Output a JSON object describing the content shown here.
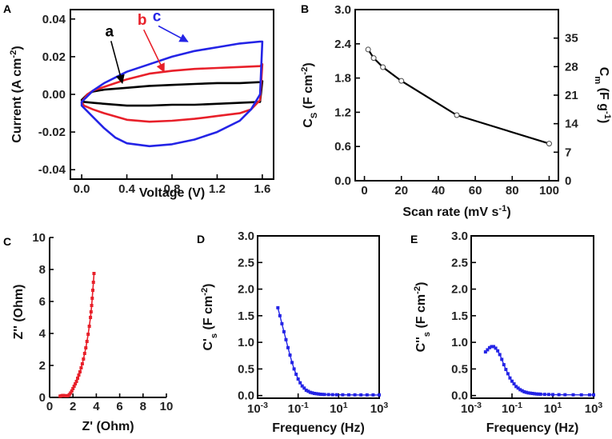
{
  "figure": {
    "panel_labels": [
      "A",
      "B",
      "C",
      "D",
      "E"
    ]
  },
  "colors": {
    "black": "#000000",
    "red": "#e8202a",
    "blue": "#2424e6"
  },
  "chart_data": [
    {
      "panel": "A",
      "type": "line",
      "subtype": "cyclic voltammetry",
      "xlabel": "Voltage (V)",
      "ylabel": "Current (A cm-2)",
      "ylabel_parts": [
        "Current (A cm",
        "-2",
        ")"
      ],
      "xlim": [
        -0.1,
        1.7
      ],
      "ylim": [
        -0.045,
        0.045
      ],
      "xticks": [
        0.0,
        0.4,
        0.8,
        1.2,
        1.6
      ],
      "xtick_labels": [
        "0.0",
        "0.4",
        "0.8",
        "1.2",
        "1.6"
      ],
      "yticks": [
        0.04,
        0.02,
        0.0,
        -0.02,
        -0.04
      ],
      "ytick_labels": [
        "0.04",
        "0.02",
        "0.00",
        "-0.02",
        "-0.04"
      ],
      "series": [
        {
          "name": "a",
          "label": "a",
          "color": "#000000",
          "upper": {
            "x": [
              0.0,
              0.05,
              0.1,
              0.2,
              0.3,
              0.4,
              0.6,
              0.8,
              1.0,
              1.2,
              1.4,
              1.58,
              1.6
            ],
            "y": [
              -0.003,
              0.0,
              0.0015,
              0.0025,
              0.003,
              0.0035,
              0.0045,
              0.005,
              0.0055,
              0.006,
              0.006,
              0.0065,
              0.007
            ]
          },
          "lower": {
            "x": [
              1.6,
              1.58,
              1.4,
              1.2,
              1.0,
              0.8,
              0.6,
              0.4,
              0.2,
              0.1,
              0.02,
              0.0
            ],
            "y": [
              0.007,
              -0.004,
              -0.0045,
              -0.005,
              -0.0055,
              -0.0055,
              -0.006,
              -0.006,
              -0.005,
              -0.0045,
              -0.004,
              -0.003
            ]
          }
        },
        {
          "name": "b",
          "label": "b",
          "color": "#e8202a",
          "upper": {
            "x": [
              0.0,
              0.05,
              0.1,
              0.2,
              0.3,
              0.4,
              0.6,
              0.8,
              1.0,
              1.2,
              1.4,
              1.58,
              1.6
            ],
            "y": [
              -0.004,
              0.0,
              0.002,
              0.004,
              0.006,
              0.008,
              0.011,
              0.0125,
              0.0135,
              0.014,
              0.0145,
              0.015,
              0.016
            ]
          },
          "lower": {
            "x": [
              1.6,
              1.58,
              1.5,
              1.4,
              1.2,
              1.0,
              0.8,
              0.6,
              0.4,
              0.2,
              0.1,
              0.02,
              0.0
            ],
            "y": [
              0.016,
              -0.003,
              -0.008,
              -0.01,
              -0.0115,
              -0.013,
              -0.014,
              -0.0145,
              -0.0135,
              -0.01,
              -0.008,
              -0.006,
              -0.004
            ]
          }
        },
        {
          "name": "c",
          "label": "c",
          "color": "#2424e6",
          "upper": {
            "x": [
              0.0,
              0.05,
              0.1,
              0.2,
              0.3,
              0.4,
              0.6,
              0.8,
              1.0,
              1.2,
              1.4,
              1.58,
              1.6
            ],
            "y": [
              -0.004,
              -0.001,
              0.002,
              0.006,
              0.009,
              0.012,
              0.016,
              0.02,
              0.023,
              0.025,
              0.027,
              0.028,
              0.028
            ]
          },
          "lower": {
            "x": [
              1.6,
              1.58,
              1.5,
              1.4,
              1.2,
              1.0,
              0.8,
              0.6,
              0.4,
              0.3,
              0.2,
              0.1,
              0.05,
              0.0
            ],
            "y": [
              0.028,
              0.0,
              -0.008,
              -0.014,
              -0.02,
              -0.024,
              -0.0265,
              -0.0275,
              -0.026,
              -0.023,
              -0.018,
              -0.012,
              -0.009,
              -0.006
            ]
          }
        }
      ],
      "annotations": [
        {
          "text": "a",
          "color": "#000000",
          "arrow_from": [
            0.26,
            0.03
          ],
          "arrow_to": [
            0.36,
            0.006
          ]
        },
        {
          "text": "b",
          "color": "#e8202a",
          "arrow_from": [
            0.55,
            0.036
          ],
          "arrow_to": [
            0.73,
            0.012
          ]
        },
        {
          "text": "c",
          "color": "#2424e6",
          "arrow_from": [
            0.68,
            0.038
          ],
          "arrow_to": [
            0.94,
            0.028
          ]
        }
      ]
    },
    {
      "panel": "B",
      "type": "line",
      "xlabel": "Scan rate (mV s-1)",
      "xlabel_parts": [
        "Scan rate (mV s",
        "-1",
        ")"
      ],
      "ylabel": "CS (F cm-2)",
      "ylabel_parts": [
        "C",
        "S",
        " (F cm",
        "-2",
        ")"
      ],
      "ylabel_right": "Cm (F g-1)",
      "ylabel_right_parts": [
        "C",
        "m",
        " (F g",
        "-1",
        ")"
      ],
      "xlim": [
        -5,
        105
      ],
      "ylim": [
        0.0,
        3.0
      ],
      "ylim_right": [
        0,
        42
      ],
      "xticks": [
        0,
        20,
        40,
        60,
        80,
        100
      ],
      "xtick_labels": [
        "0",
        "20",
        "40",
        "60",
        "80",
        "100"
      ],
      "yticks": [
        0.0,
        0.6,
        1.2,
        1.8,
        2.4,
        3.0
      ],
      "ytick_labels": [
        "0.0",
        "0.6",
        "1.2",
        "1.8",
        "2.4",
        "3.0"
      ],
      "yticks_right": [
        0,
        7,
        14,
        21,
        28,
        35
      ],
      "ytick_labels_right": [
        "0",
        "7",
        "14",
        "21",
        "28",
        "35"
      ],
      "x": [
        2,
        5,
        10,
        20,
        50,
        100
      ],
      "y": [
        2.3,
        2.15,
        1.99,
        1.75,
        1.15,
        0.65
      ]
    },
    {
      "panel": "C",
      "type": "scatter",
      "subtype": "Nyquist",
      "xlabel": "Z' (Ohm)",
      "ylabel": "Z'' (Ohm)",
      "xlim": [
        0,
        10
      ],
      "ylim": [
        0,
        10
      ],
      "xticks": [
        0,
        2,
        4,
        6,
        8,
        10
      ],
      "xtick_labels": [
        "0",
        "2",
        "4",
        "6",
        "8",
        "10"
      ],
      "yticks": [
        0,
        2,
        4,
        6,
        8,
        10
      ],
      "ytick_labels": [
        "0",
        "2",
        "4",
        "6",
        "8",
        "10"
      ],
      "color": "#e8202a",
      "x": [
        0.9,
        1.0,
        1.1,
        1.2,
        1.3,
        1.4,
        1.5,
        1.6,
        1.7,
        1.8,
        1.9,
        2.0,
        2.1,
        2.2,
        2.3,
        2.4,
        2.5,
        2.6,
        2.7,
        2.8,
        2.9,
        3.0,
        3.1,
        3.2,
        3.3,
        3.4,
        3.5,
        3.55,
        3.6,
        3.65,
        3.7,
        3.75,
        3.8
      ],
      "y": [
        0.08,
        0.1,
        0.12,
        0.12,
        0.11,
        0.1,
        0.1,
        0.12,
        0.18,
        0.28,
        0.4,
        0.55,
        0.7,
        0.85,
        1.0,
        1.2,
        1.4,
        1.6,
        1.85,
        2.1,
        2.4,
        2.75,
        3.1,
        3.5,
        3.95,
        4.45,
        5.0,
        5.35,
        5.75,
        6.2,
        6.7,
        7.2,
        7.75
      ]
    },
    {
      "panel": "D",
      "type": "scatter",
      "xlabel": "Frequency (Hz)",
      "ylabel": "C's (F cm-2)",
      "ylabel_parts": [
        "C'",
        "s",
        " (F cm",
        "-2",
        ")"
      ],
      "xscale": "log",
      "xlim_exp": [
        -3,
        3
      ],
      "ylim": [
        -0.05,
        3.0
      ],
      "xticks_exp": [
        -3,
        -1,
        1,
        3
      ],
      "xtick_bases": [
        "10",
        "10",
        "10",
        "10"
      ],
      "xtick_exps": [
        "-3",
        "-1",
        "1",
        "3"
      ],
      "yticks": [
        0.0,
        0.5,
        1.0,
        1.5,
        2.0,
        2.5,
        3.0
      ],
      "ytick_labels": [
        "0.0",
        "0.5",
        "1.0",
        "1.5",
        "2.0",
        "2.5",
        "3.0"
      ],
      "color": "#2424e6",
      "x_exp": [
        -2.0,
        -1.9,
        -1.8,
        -1.7,
        -1.6,
        -1.5,
        -1.4,
        -1.3,
        -1.2,
        -1.1,
        -1.0,
        -0.9,
        -0.8,
        -0.7,
        -0.6,
        -0.5,
        -0.4,
        -0.3,
        -0.2,
        -0.1,
        0.0,
        0.1,
        0.2,
        0.3,
        0.5,
        0.7,
        0.9,
        1.2,
        1.5,
        1.8,
        2.1,
        2.4,
        2.7,
        3.0
      ],
      "y": [
        1.65,
        1.5,
        1.35,
        1.2,
        1.05,
        0.9,
        0.76,
        0.62,
        0.5,
        0.4,
        0.31,
        0.24,
        0.18,
        0.14,
        0.1,
        0.08,
        0.06,
        0.05,
        0.04,
        0.035,
        0.03,
        0.025,
        0.022,
        0.02,
        0.018,
        0.016,
        0.015,
        0.014,
        0.013,
        0.013,
        0.012,
        0.012,
        0.012,
        0.012
      ]
    },
    {
      "panel": "E",
      "type": "scatter",
      "xlabel": "Frequency (Hz)",
      "ylabel": "C''s (F cm-2)",
      "ylabel_parts": [
        "C''",
        "s",
        " (F cm",
        "-2",
        ")"
      ],
      "xscale": "log",
      "xlim_exp": [
        -3,
        3
      ],
      "ylim": [
        -0.05,
        3.0
      ],
      "xticks_exp": [
        -3,
        -1,
        1,
        3
      ],
      "xtick_bases": [
        "10",
        "10",
        "10",
        "10"
      ],
      "xtick_exps": [
        "-3",
        "-1",
        "1",
        "3"
      ],
      "yticks": [
        0.0,
        0.5,
        1.0,
        1.5,
        2.0,
        2.5,
        3.0
      ],
      "ytick_labels": [
        "0.0",
        "0.5",
        "1.0",
        "1.5",
        "2.0",
        "2.5",
        "3.0"
      ],
      "color": "#2424e6",
      "x_exp": [
        -2.3,
        -2.2,
        -2.1,
        -2.0,
        -1.9,
        -1.8,
        -1.7,
        -1.6,
        -1.5,
        -1.4,
        -1.3,
        -1.2,
        -1.1,
        -1.0,
        -0.9,
        -0.8,
        -0.7,
        -0.6,
        -0.5,
        -0.4,
        -0.3,
        -0.2,
        -0.1,
        0.0,
        0.1,
        0.2,
        0.3,
        0.4,
        0.6,
        0.8,
        1.0,
        1.3,
        1.6,
        2.0,
        2.4,
        2.8,
        3.0
      ],
      "y": [
        0.82,
        0.86,
        0.9,
        0.92,
        0.92,
        0.89,
        0.84,
        0.77,
        0.68,
        0.58,
        0.49,
        0.41,
        0.33,
        0.27,
        0.22,
        0.17,
        0.14,
        0.11,
        0.09,
        0.07,
        0.06,
        0.05,
        0.045,
        0.04,
        0.035,
        0.03,
        0.028,
        0.026,
        0.022,
        0.02,
        0.018,
        0.016,
        0.015,
        0.014,
        0.013,
        0.013,
        0.013
      ]
    }
  ]
}
